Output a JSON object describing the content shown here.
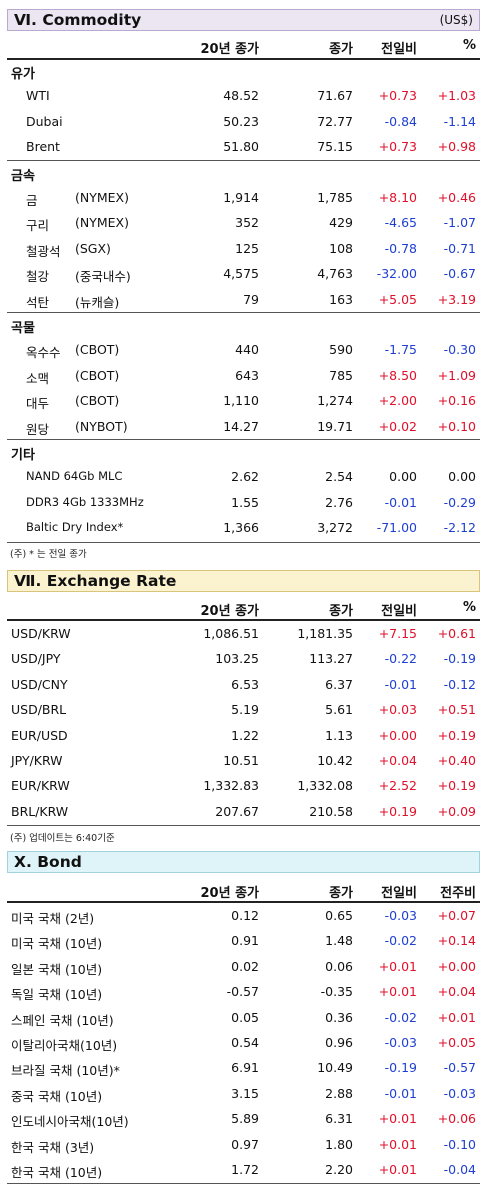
{
  "commodity": {
    "title": "Ⅵ. Commodity",
    "unit": "(US$)",
    "headers": [
      "20년 종가",
      "종가",
      "전일비",
      "%"
    ],
    "groups": [
      {
        "name": "유가",
        "rows": [
          {
            "name": "WTI",
            "sub": "",
            "v1": "48.52",
            "v2": "71.67",
            "chg": "+0.73",
            "pct": "+1.03"
          },
          {
            "name": "Dubai",
            "sub": "",
            "v1": "50.23",
            "v2": "72.77",
            "chg": "-0.84",
            "pct": "-1.14"
          },
          {
            "name": "Brent",
            "sub": "",
            "v1": "51.80",
            "v2": "75.15",
            "chg": "+0.73",
            "pct": "+0.98"
          }
        ]
      },
      {
        "name": "금속",
        "rows": [
          {
            "name": "금",
            "sub": "(NYMEX)",
            "v1": "1,914",
            "v2": "1,785",
            "chg": "+8.10",
            "pct": "+0.46"
          },
          {
            "name": "구리",
            "sub": "(NYMEX)",
            "v1": "352",
            "v2": "429",
            "chg": "-4.65",
            "pct": "-1.07"
          },
          {
            "name": "철광석",
            "sub": "(SGX)",
            "v1": "125",
            "v2": "108",
            "chg": "-0.78",
            "pct": "-0.71"
          },
          {
            "name": "철강",
            "sub": "(중국내수)",
            "v1": "4,575",
            "v2": "4,763",
            "chg": "-32.00",
            "pct": "-0.67"
          },
          {
            "name": "석탄",
            "sub": "(뉴캐슬)",
            "v1": "79",
            "v2": "163",
            "chg": "+5.05",
            "pct": "+3.19"
          }
        ]
      },
      {
        "name": "곡물",
        "rows": [
          {
            "name": "옥수수",
            "sub": "(CBOT)",
            "v1": "440",
            "v2": "590",
            "chg": "-1.75",
            "pct": "-0.30"
          },
          {
            "name": "소맥",
            "sub": "(CBOT)",
            "v1": "643",
            "v2": "785",
            "chg": "+8.50",
            "pct": "+1.09"
          },
          {
            "name": "대두",
            "sub": "(CBOT)",
            "v1": "1,110",
            "v2": "1,274",
            "chg": "+2.00",
            "pct": "+0.16"
          },
          {
            "name": "원당",
            "sub": "(NYBOT)",
            "v1": "14.27",
            "v2": "19.71",
            "chg": "+0.02",
            "pct": "+0.10"
          }
        ]
      },
      {
        "name": "기타",
        "rows": [
          {
            "name": "NAND 64Gb MLC",
            "sub": "",
            "v1": "2.62",
            "v2": "2.54",
            "chg": "0.00",
            "pct": "0.00"
          },
          {
            "name": "DDR3 4Gb 1333MHz",
            "sub": "",
            "v1": "1.55",
            "v2": "2.76",
            "chg": "-0.01",
            "pct": "-0.29"
          },
          {
            "name": "Baltic Dry Index*",
            "sub": "",
            "v1": "1,366",
            "v2": "3,272",
            "chg": "-71.00",
            "pct": "-2.12"
          }
        ]
      }
    ],
    "note": "(주) * 는 전일 종가"
  },
  "exchange": {
    "title": "Ⅶ. Exchange Rate",
    "headers": [
      "20년 종가",
      "종가",
      "전일비",
      "%"
    ],
    "rows": [
      {
        "name": "USD/KRW",
        "v1": "1,086.51",
        "v2": "1,181.35",
        "chg": "+7.15",
        "pct": "+0.61"
      },
      {
        "name": "USD/JPY",
        "v1": "103.25",
        "v2": "113.27",
        "chg": "-0.22",
        "pct": "-0.19"
      },
      {
        "name": "USD/CNY",
        "v1": "6.53",
        "v2": "6.37",
        "chg": "-0.01",
        "pct": "-0.12"
      },
      {
        "name": "USD/BRL",
        "v1": "5.19",
        "v2": "5.61",
        "chg": "+0.03",
        "pct": "+0.51"
      },
      {
        "name": "EUR/USD",
        "v1": "1.22",
        "v2": "1.13",
        "chg": "+0.00",
        "pct": "+0.19"
      },
      {
        "name": "JPY/KRW",
        "v1": "10.51",
        "v2": "10.42",
        "chg": "+0.04",
        "pct": "+0.40"
      },
      {
        "name": "EUR/KRW",
        "v1": "1,332.83",
        "v2": "1,332.08",
        "chg": "+2.52",
        "pct": "+0.19"
      },
      {
        "name": "BRL/KRW",
        "v1": "207.67",
        "v2": "210.58",
        "chg": "+0.19",
        "pct": "+0.09"
      }
    ],
    "note": "(주) 업데이트는 6:40기준"
  },
  "bond": {
    "title": "Ⅹ. Bond",
    "headers": [
      "20년 종가",
      "종가",
      "전일비",
      "전주비"
    ],
    "rows": [
      {
        "name": "미국 국채 (2년)",
        "v1": "0.12",
        "v2": "0.65",
        "chg": "-0.03",
        "pct": "+0.07"
      },
      {
        "name": "미국 국채 (10년)",
        "v1": "0.91",
        "v2": "1.48",
        "chg": "-0.02",
        "pct": "+0.14"
      },
      {
        "name": "일본 국채 (10년)",
        "v1": "0.02",
        "v2": "0.06",
        "chg": "+0.01",
        "pct": "+0.00"
      },
      {
        "name": "독일 국채 (10년)",
        "v1": "-0.57",
        "v2": "-0.35",
        "chg": "+0.01",
        "pct": "+0.04"
      },
      {
        "name": "스페인 국채 (10년)",
        "v1": "0.05",
        "v2": "0.36",
        "chg": "-0.02",
        "pct": "+0.01"
      },
      {
        "name": "이탈리아국채(10년)",
        "v1": "0.54",
        "v2": "0.96",
        "chg": "-0.03",
        "pct": "+0.05"
      },
      {
        "name": "브라질 국채 (10년)*",
        "v1": "6.91",
        "v2": "10.49",
        "chg": "-0.19",
        "pct": "-0.57"
      },
      {
        "name": "중국 국채 (10년)",
        "v1": "3.15",
        "v2": "2.88",
        "chg": "-0.01",
        "pct": "-0.03"
      },
      {
        "name": "인도네시아국채(10년)",
        "v1": "5.89",
        "v2": "6.31",
        "chg": "+0.01",
        "pct": "+0.06"
      },
      {
        "name": "한국 국채 (3년)",
        "v1": "0.97",
        "v2": "1.80",
        "chg": "+0.01",
        "pct": "-0.10"
      },
      {
        "name": "한국 국채 (10년)",
        "v1": "1.72",
        "v2": "2.20",
        "chg": "+0.01",
        "pct": "-0.04"
      }
    ]
  },
  "colors": {
    "positive": "#e0102a",
    "negative": "#1f3fd0"
  }
}
